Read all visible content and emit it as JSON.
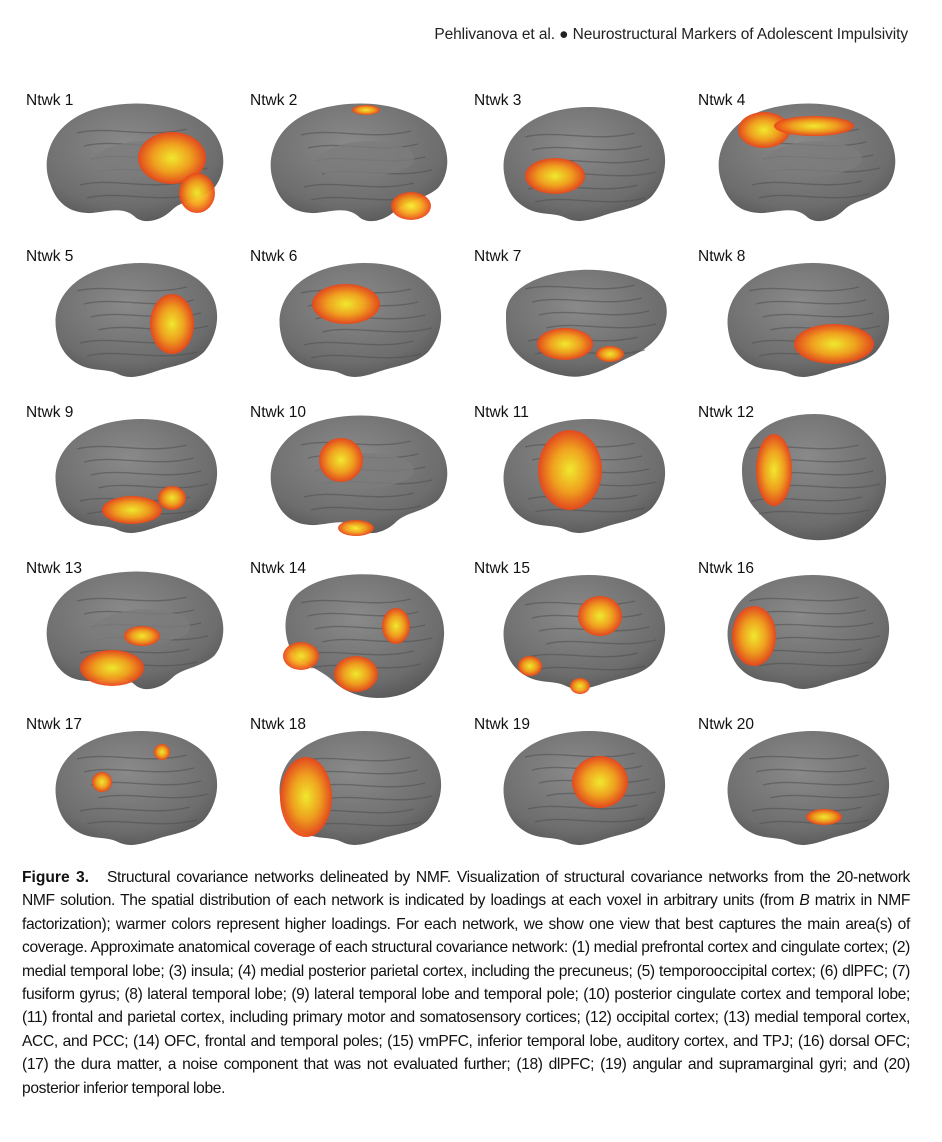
{
  "header": {
    "authors": "Pehlivanova et al.",
    "bullet": "●",
    "title": "Neurostructural Markers of Adolescent Impulsivity"
  },
  "panels": [
    {
      "label": "Ntwk 1",
      "view": "medial"
    },
    {
      "label": "Ntwk 2",
      "view": "medial"
    },
    {
      "label": "Ntwk 3",
      "view": "lateral"
    },
    {
      "label": "Ntwk 4",
      "view": "medial"
    },
    {
      "label": "Ntwk 5",
      "view": "lateral"
    },
    {
      "label": "Ntwk 6",
      "view": "lateral"
    },
    {
      "label": "Ntwk 7",
      "view": "inferior"
    },
    {
      "label": "Ntwk 8",
      "view": "lateral"
    },
    {
      "label": "Ntwk 9",
      "view": "lateral"
    },
    {
      "label": "Ntwk 10",
      "view": "medial"
    },
    {
      "label": "Ntwk 11",
      "view": "lateral"
    },
    {
      "label": "Ntwk 12",
      "view": "posterior"
    },
    {
      "label": "Ntwk 13",
      "view": "medial"
    },
    {
      "label": "Ntwk 14",
      "view": "anterior"
    },
    {
      "label": "Ntwk 15",
      "view": "lateral"
    },
    {
      "label": "Ntwk 16",
      "view": "lateral"
    },
    {
      "label": "Ntwk 17",
      "view": "lateral"
    },
    {
      "label": "Ntwk 18",
      "view": "lateral"
    },
    {
      "label": "Ntwk 19",
      "view": "lateral"
    },
    {
      "label": "Ntwk 20",
      "view": "lateral"
    }
  ],
  "caption": {
    "label": "Figure 3.",
    "part1": "Structural covariance networks delineated by NMF. Visualization of structural covariance networks from the 20-network NMF solution. The spatial distribution of each network is indicated by loadings at each voxel in arbitrary units (from ",
    "italic": "B",
    "part2": " matrix in NMF factorization); warmer colors represent higher loadings. For each network, we show one view that best captures the main area(s) of coverage. Approximate anatomical coverage of each structural covariance network: (1) medial prefrontal cortex and cingulate cortex; (2) medial temporal lobe; (3) insula; (4) medial posterior parietal cortex, including the precuneus; (5) temporooccipital cortex; (6) dlPFC; (7) fusiform gyrus; (8) lateral temporal lobe; (9) lateral temporal lobe and temporal pole; (10) posterior cingulate cortex and temporal lobe; (11) frontal and parietal cortex, including primary motor and somatosensory cortices; (12) occipital cortex; (13) medial temporal cortex, ACC, and PCC; (14) OFC, frontal and temporal poles; (15) vmPFC, inferior temporal lobe, auditory cortex, and TPJ; (16) dorsal OFC; (17) the dura matter, a noise component that was not evaluated further; (18) dlPFC; (19) angular and supramarginal gyri; and (20) posterior inferior temporal lobe."
  },
  "colors": {
    "cortex": "#6d6d6d",
    "cortex_dark": "#505050",
    "heat_low": "#e8461a",
    "heat_mid": "#f5a21a",
    "heat_high": "#f6ee2a"
  }
}
